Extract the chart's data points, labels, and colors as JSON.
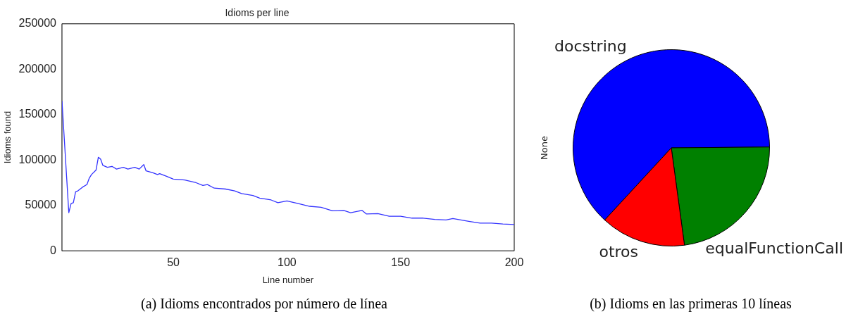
{
  "chart_data": [
    {
      "type": "line",
      "title": "Idioms per line",
      "xlabel": "Line number",
      "ylabel": "Idioms found",
      "x": [
        1,
        4,
        5,
        6,
        7,
        8,
        10,
        12,
        13,
        14,
        16,
        17,
        18,
        19,
        21,
        23,
        25,
        28,
        30,
        33,
        35,
        37,
        38,
        41,
        43,
        44,
        47,
        50,
        55,
        60,
        63,
        65,
        68,
        73,
        77,
        80,
        85,
        88,
        93,
        96,
        100,
        105,
        110,
        115,
        120,
        125,
        128,
        133,
        135,
        140,
        145,
        150,
        155,
        160,
        165,
        170,
        173,
        180,
        185,
        190,
        195,
        200
      ],
      "series": [
        {
          "color": "#3333ff",
          "values": [
            165000,
            42000,
            52000,
            53000,
            65000,
            66000,
            70000,
            73000,
            80000,
            84000,
            89000,
            103000,
            101000,
            94000,
            92000,
            93000,
            90000,
            92000,
            90000,
            92000,
            90000,
            95000,
            88000,
            86000,
            84000,
            85000,
            82000,
            79000,
            78000,
            75000,
            72000,
            73000,
            69000,
            68000,
            66000,
            63000,
            61000,
            58000,
            56000,
            53000,
            55000,
            52000,
            49000,
            48000,
            44000,
            44500,
            42000,
            44500,
            40500,
            41000,
            38000,
            38000,
            36000,
            36000,
            34500,
            34000,
            35500,
            32500,
            30500,
            30500,
            29500,
            29000
          ]
        }
      ],
      "xlim": [
        1,
        200
      ],
      "xticks": [
        50,
        100,
        150,
        200
      ],
      "ylim": [
        0,
        250000
      ],
      "yticks": [
        0,
        50000,
        100000,
        150000,
        200000,
        250000
      ],
      "grid": false,
      "legend": false,
      "marker": "none",
      "annotations": [
        "(a) Idioms encontrados por número de línea"
      ]
    },
    {
      "type": "pie",
      "ylabel": "None",
      "categories": [
        "docstring",
        "equalFunctionCall",
        "otros"
      ],
      "values": [
        63,
        23,
        14
      ],
      "colors": [
        "#0000ff",
        "#008000",
        "#ff0000"
      ],
      "legend": false,
      "annotations": [
        "(b) Idioms en las primeras 10 líneas"
      ]
    }
  ]
}
